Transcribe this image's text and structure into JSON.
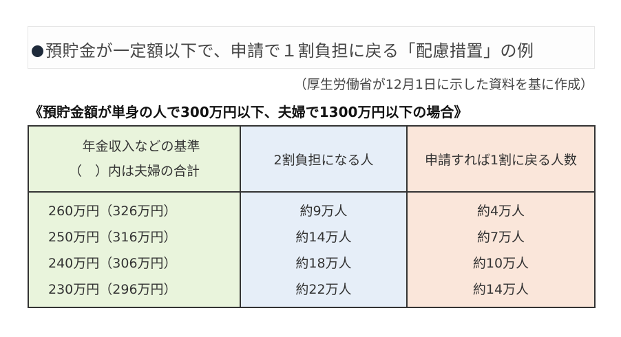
{
  "title": "預貯金が一定額以下で、申請で１割負担に戻る「配慮措置」の例",
  "source": "（厚生労働省が12月1日に示した資料を基に作成）",
  "condition": "《預貯金額が単身の人で300万円以下、夫婦で1300万円以下の場合》",
  "colors": {
    "col1": "#e9f4dc",
    "col2": "#e6eef8",
    "col3": "#fae6da"
  },
  "table": {
    "headers": {
      "col1_line1": "年金収入などの基準",
      "col1_line2": "（　）内は夫婦の合計",
      "col2": "2割負担になる人",
      "col3": "申請すれば1割に戻る人数"
    },
    "rows": [
      {
        "income": "260万円（326万円）",
        "two_tenths": "約9万人",
        "back_to_one": "約4万人"
      },
      {
        "income": "250万円（316万円）",
        "two_tenths": "約14万人",
        "back_to_one": "約7万人"
      },
      {
        "income": "240万円（306万円）",
        "two_tenths": "約18万人",
        "back_to_one": "約10万人"
      },
      {
        "income": "230万円（296万円）",
        "two_tenths": "約22万人",
        "back_to_one": "約14万人"
      }
    ]
  }
}
